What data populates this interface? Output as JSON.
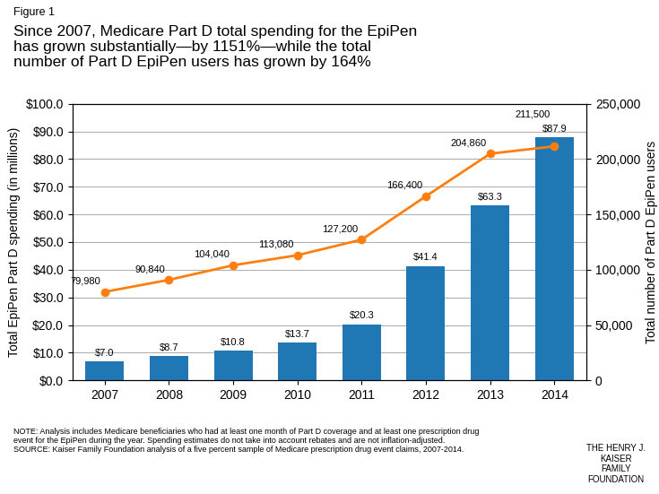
{
  "chart_data": {
    "type": "bar",
    "title": "Since 2007, Medicare Part D total spending for the EpiPen\nhas grown substantially—by 1151%—while the total\nnumber of Part D EpiPen users has grown by 164%",
    "annotations": [
      "Figure 1",
      "NOTE: Analysis includes Medicare beneficiaries who had at least one month of Part D coverage and at least one prescription drug\nevent for the EpiPen during the year. Spending estimates do not take into account rebates and are not inflation-adjusted.\nSOURCE: Kaiser Family Foundation analysis of a five percent sample of Medicare prescription drug event claims, 2007-2014.",
      "THE HENRY J.\nKAISER\nFAMILY\nFOUNDATION"
    ],
    "ylabel": "Total EpiPen Part D spending (in millions)",
    "y2label": "Total number of Part D EpiPen users",
    "categories": [
      "2007",
      "2008",
      "2009",
      "2010",
      "2011",
      "2012",
      "2013",
      "2014"
    ],
    "series": [
      {
        "type": "bar",
        "values": [
          7.0,
          8.7,
          10.8,
          13.7,
          20.3,
          41.4,
          63.3,
          87.9
        ],
        "value_labels": [
          "$7.0",
          "$8.7",
          "$10.8",
          "$13.7",
          "$20.3",
          "$41.4",
          "$63.3",
          "$87.9"
        ]
      },
      {
        "type": "line",
        "axis": "y2",
        "marker": "o",
        "values": [
          79980,
          90840,
          104040,
          113080,
          127200,
          166400,
          204860,
          211500
        ],
        "value_labels": [
          "79,980",
          "90,840",
          "104,040",
          "113,080",
          "127,200",
          "166,400",
          "204,860",
          "211,500"
        ]
      }
    ],
    "data_labels": true,
    "grid": true,
    "ylim": [
      0,
      100
    ],
    "yticks": [
      {
        "value": 0,
        "label": "$0.0"
      },
      {
        "value": 10,
        "label": "$10.0"
      },
      {
        "value": 20,
        "label": "$20.0"
      },
      {
        "value": 30,
        "label": "$30.0"
      },
      {
        "value": 40,
        "label": "$40.0"
      },
      {
        "value": 50,
        "label": "$50.0"
      },
      {
        "value": 60,
        "label": "$60.0"
      },
      {
        "value": 70,
        "label": "$70.0"
      },
      {
        "value": 80,
        "label": "$80.0"
      },
      {
        "value": 90,
        "label": "$90.0"
      },
      {
        "value": 100,
        "label": "$100.0"
      }
    ],
    "y2lim": [
      0,
      250000
    ],
    "y2ticks": [
      0,
      {
        "value": 50000,
        "label": "50,000"
      },
      {
        "value": 100000,
        "label": "100,000"
      },
      {
        "value": 150000,
        "label": "150,000"
      },
      {
        "value": 200000,
        "label": "200,000"
      },
      {
        "value": 250000,
        "label": "250,000"
      }
    ]
  }
}
